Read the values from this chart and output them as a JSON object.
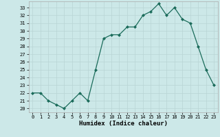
{
  "x": [
    0,
    1,
    2,
    3,
    4,
    5,
    6,
    7,
    8,
    9,
    10,
    11,
    12,
    13,
    14,
    15,
    16,
    17,
    18,
    19,
    20,
    21,
    22,
    23
  ],
  "y": [
    22,
    22,
    21,
    20.5,
    20,
    21,
    22,
    21,
    25,
    29,
    29.5,
    29.5,
    30.5,
    30.5,
    32,
    32.5,
    33.5,
    32,
    33,
    31.5,
    31,
    28,
    25,
    23
  ],
  "line_color": "#1a6b5a",
  "marker_color": "#1a6b5a",
  "bg_color": "#cce8e8",
  "grid_color": "#b8d4d4",
  "xlabel": "Humidex (Indice chaleur)",
  "ylabel_ticks": [
    20,
    21,
    22,
    23,
    24,
    25,
    26,
    27,
    28,
    29,
    30,
    31,
    32,
    33
  ],
  "xlim": [
    -0.5,
    23.5
  ],
  "ylim": [
    19.5,
    33.8
  ],
  "xticks": [
    0,
    1,
    2,
    3,
    4,
    5,
    6,
    7,
    8,
    9,
    10,
    11,
    12,
    13,
    14,
    15,
    16,
    17,
    18,
    19,
    20,
    21,
    22,
    23
  ]
}
